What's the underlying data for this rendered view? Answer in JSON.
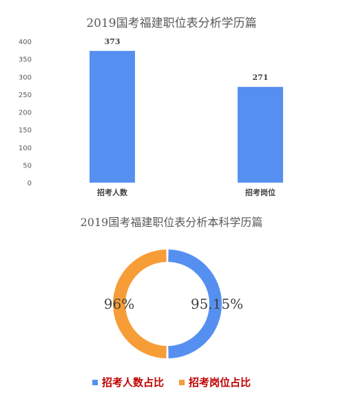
{
  "colors": {
    "blue": "#5590f0",
    "orange": "#f79d37",
    "legend_text": "#c00000"
  },
  "chart_data": [
    {
      "type": "bar",
      "title": "2019国考福建职位表分析学历篇",
      "categories": [
        "招考人数",
        "招考岗位"
      ],
      "values": [
        373,
        271
      ],
      "ylim": [
        0,
        400
      ],
      "yticks": [
        "0",
        "50",
        "100",
        "150",
        "200",
        "250",
        "300",
        "350",
        "400"
      ],
      "data_labels": [
        "373",
        "271"
      ],
      "grid": false
    },
    {
      "type": "pie",
      "title": "2019国考福建职位表分析本科学历篇",
      "slice_labels": [
        "95.15%",
        "96%"
      ],
      "legend": [
        "招考人数占比",
        "招考岗位占比"
      ],
      "legend_position": "bottom"
    }
  ]
}
